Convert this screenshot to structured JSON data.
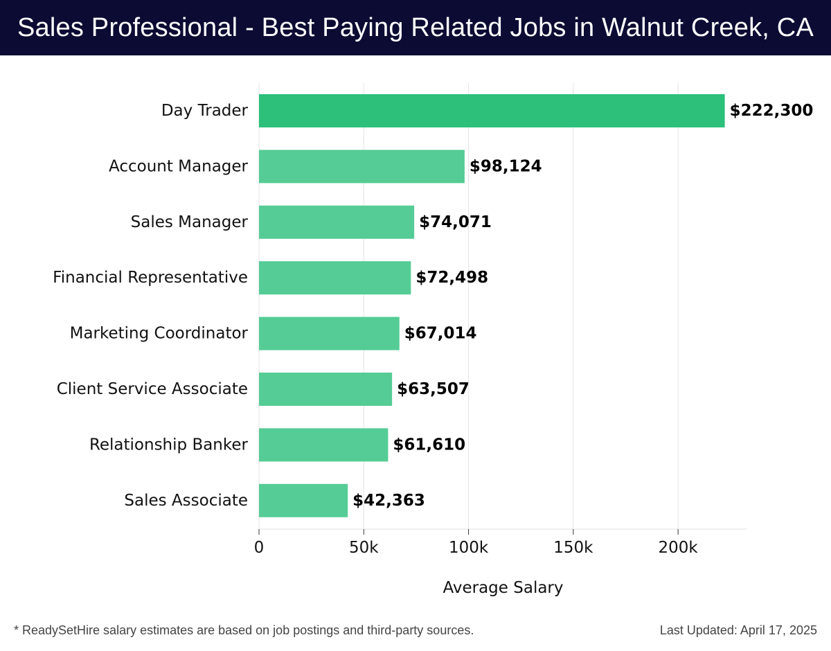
{
  "header": {
    "title": "Sales Professional - Best Paying Related Jobs in Walnut Creek, CA"
  },
  "chart_data": {
    "type": "bar",
    "orientation": "horizontal",
    "categories": [
      "Day Trader",
      "Account Manager",
      "Sales Manager",
      "Financial Representative",
      "Marketing Coordinator",
      "Client Service Associate",
      "Relationship Banker",
      "Sales Associate"
    ],
    "values": [
      222300,
      98124,
      74071,
      72498,
      67014,
      63507,
      61610,
      42363
    ],
    "value_labels": [
      "$222,300",
      "$98,124",
      "$74,071",
      "$72,498",
      "$67,014",
      "$63,507",
      "$61,610",
      "$42,363"
    ],
    "xlabel": "Average Salary",
    "ylabel": "",
    "xlim": [
      0,
      233000
    ],
    "xticks": [
      0,
      50000,
      100000,
      150000,
      200000
    ],
    "xtick_labels": [
      "0",
      "50k",
      "100k",
      "150k",
      "200k"
    ],
    "grid": true,
    "colors": {
      "highlight": "#2cc07a",
      "bar": "#55cc95",
      "grid": "#e3e3e3"
    }
  },
  "footer": {
    "note": "* ReadySetHire salary estimates are based on job postings and third-party sources.",
    "updated": "Last Updated: April 17, 2025"
  }
}
